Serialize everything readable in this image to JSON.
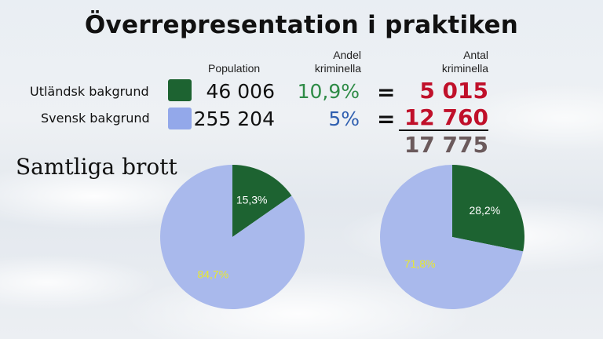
{
  "title": "Överrepresentation i praktiken",
  "headers": {
    "population": "Population",
    "rate_line1": "Andel",
    "rate_line2": "kriminella",
    "count_line1": "Antal",
    "count_line2": "kriminella"
  },
  "rows": [
    {
      "label": "Utländsk bakgrund",
      "population": "46 006",
      "rate": "10,9%",
      "equals": "=",
      "count": "5 015",
      "color": "#1d6331",
      "rate_color": "#2e8b46",
      "count_color": "#c0102a"
    },
    {
      "label": "Svensk bakgrund",
      "population": "255 204",
      "rate": "5%",
      "equals": "=",
      "count": "12 760",
      "color": "#93a8ea",
      "rate_color": "#2f5fb0",
      "count_color": "#c0102a"
    }
  ],
  "total": {
    "value": "17 775",
    "color": "#6b5a5c"
  },
  "subhead": "Samtliga brott",
  "chart_data": [
    {
      "type": "pie",
      "slices": [
        {
          "label": "15,3%",
          "value": 15.3,
          "color": "#1d6331",
          "label_color": "#ffffff"
        },
        {
          "label": "84,7%",
          "value": 84.7,
          "color": "#a9b9ec",
          "label_color": "#e8e830"
        }
      ]
    },
    {
      "type": "pie",
      "slices": [
        {
          "label": "28,2%",
          "value": 28.2,
          "color": "#1d6331",
          "label_color": "#ffffff"
        },
        {
          "label": "71,8%",
          "value": 71.8,
          "color": "#a9b9ec",
          "label_color": "#e8e830"
        }
      ]
    }
  ]
}
